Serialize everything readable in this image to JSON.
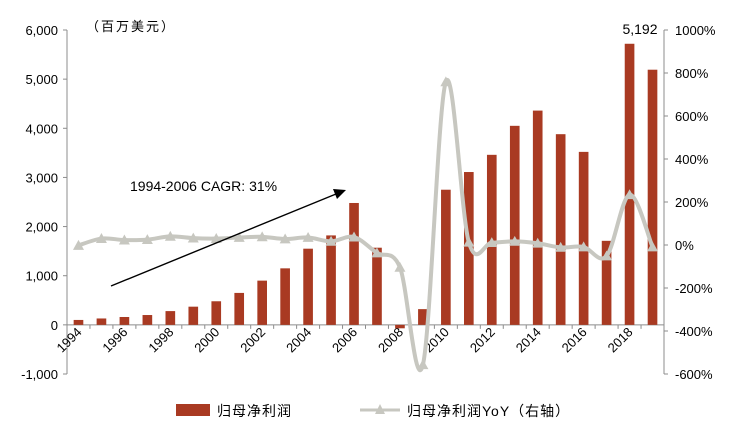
{
  "chart_data": {
    "type": "bar+line",
    "unit_label": "（百万美元）",
    "x_years": [
      1994,
      1995,
      1996,
      1997,
      1998,
      1999,
      2000,
      2001,
      2002,
      2003,
      2004,
      2005,
      2006,
      2007,
      2008,
      2009,
      2010,
      2011,
      2012,
      2013,
      2014,
      2015,
      2016,
      2017,
      2018,
      2019
    ],
    "x_tick_labels": [
      "1994",
      "1996",
      "1998",
      "2000",
      "2002",
      "2004",
      "2006",
      "2008",
      "2010",
      "2012",
      "2014",
      "2016",
      "2018"
    ],
    "series": [
      {
        "name": "归母净利润",
        "type": "bar",
        "axis": "left",
        "color": "#a93a22",
        "values": [
          100,
          130,
          160,
          200,
          280,
          370,
          480,
          650,
          900,
          1150,
          1550,
          1820,
          2480,
          1570,
          -70,
          320,
          2750,
          3110,
          3460,
          4050,
          4360,
          3880,
          3520,
          1710,
          5720,
          5192
        ]
      },
      {
        "name": "归母净利润YoY（右轴）",
        "type": "line",
        "axis": "right",
        "color": "#c7c7c0",
        "values": [
          -0.02,
          0.3,
          0.23,
          0.25,
          0.4,
          0.32,
          0.3,
          0.35,
          0.38,
          0.28,
          0.35,
          0.17,
          0.37,
          -0.37,
          -1.04,
          -5.57,
          7.59,
          0.13,
          0.11,
          0.17,
          0.08,
          -0.11,
          -0.09,
          -0.51,
          2.34,
          -0.09
        ]
      }
    ],
    "left_axis": {
      "min": -1000,
      "max": 6000,
      "ticks": [
        "-1,000",
        "0",
        "1,000",
        "2,000",
        "3,000",
        "4,000",
        "5,000",
        "6,000"
      ]
    },
    "right_axis": {
      "min": -6,
      "max": 10,
      "ticks": [
        "-600%",
        "-400%",
        "-200%",
        "0%",
        "200%",
        "400%",
        "600%",
        "800%",
        "1000%"
      ]
    },
    "annotations": {
      "cagr_text": "1994-2006 CAGR: 31%",
      "last_value_label": "5,192"
    },
    "legend": {
      "position": "bottom",
      "bar_label": "归母净利润",
      "line_label": "归母净利润YoY（右轴）"
    }
  }
}
